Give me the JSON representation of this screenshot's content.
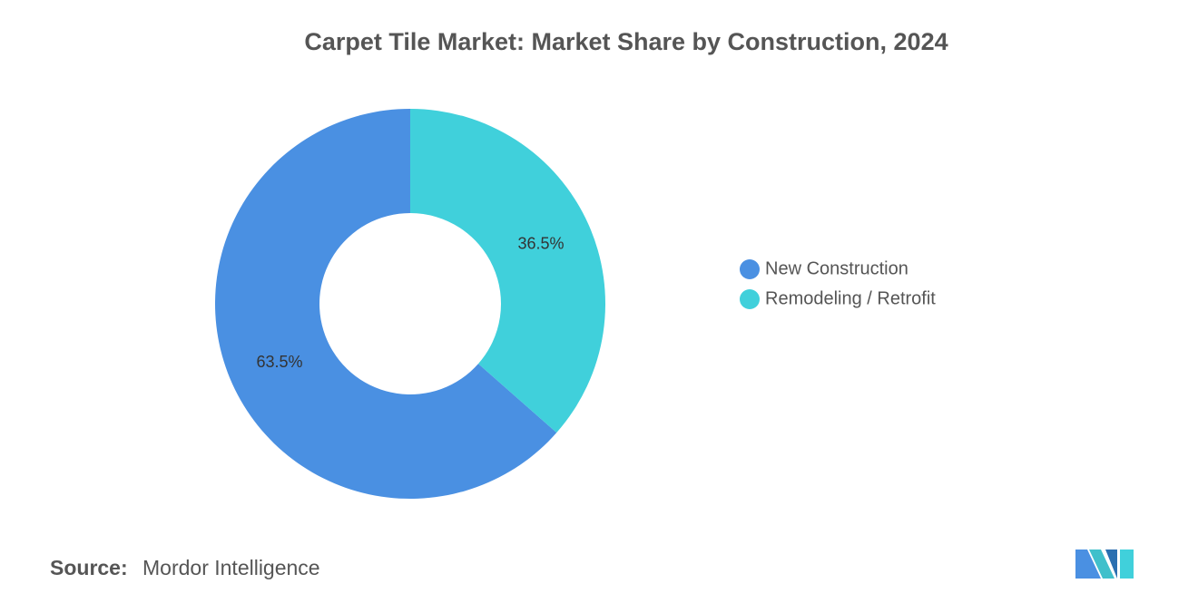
{
  "chart_data": {
    "type": "donut",
    "title": "Carpet Tile Market: Market Share by Construction, 2024",
    "categories": [
      "New Construction",
      "Remodeling / Retrofit"
    ],
    "values": [
      63.5,
      36.5
    ],
    "value_labels": [
      "63.5%",
      "36.5%"
    ],
    "colors": [
      "#4a90e2",
      "#40d0db"
    ],
    "legend": "right"
  },
  "source": {
    "label": "Source:",
    "text": "Mordor Intelligence"
  }
}
